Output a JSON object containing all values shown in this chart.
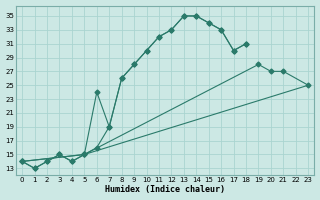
{
  "xlabel": "Humidex (Indice chaleur)",
  "bg_color": "#cce8e4",
  "grid_color": "#aad4d0",
  "line_color": "#2a7a6a",
  "xlim": [
    -0.5,
    23.5
  ],
  "ylim": [
    12,
    36.5
  ],
  "yticks": [
    13,
    15,
    17,
    19,
    21,
    23,
    25,
    27,
    29,
    31,
    33,
    35
  ],
  "xticks": [
    0,
    1,
    2,
    3,
    4,
    5,
    6,
    7,
    8,
    9,
    10,
    11,
    12,
    13,
    14,
    15,
    16,
    17,
    18,
    19,
    20,
    21,
    22,
    23
  ],
  "line1_x": [
    0,
    1,
    2,
    3,
    4,
    5,
    6,
    7,
    8,
    9,
    10,
    11,
    12,
    13,
    14,
    15,
    16,
    17,
    18
  ],
  "line1_y": [
    14,
    13,
    14,
    15,
    14,
    15,
    24,
    19,
    26,
    28,
    30,
    32,
    33,
    35,
    35,
    34,
    33,
    30,
    31
  ],
  "line2_x": [
    0,
    1,
    2,
    3,
    4,
    5,
    6,
    7,
    8,
    9,
    10,
    11,
    12,
    13,
    14,
    15,
    16,
    17,
    18
  ],
  "line2_y": [
    14,
    13,
    14,
    15,
    14,
    15,
    16,
    19,
    26,
    28,
    30,
    32,
    33,
    35,
    35,
    34,
    33,
    30,
    31
  ],
  "line3_x": [
    0,
    5,
    19,
    20,
    21,
    23
  ],
  "line3_y": [
    14,
    15,
    28,
    27,
    27,
    25
  ],
  "line4_x": [
    0,
    5,
    23
  ],
  "line4_y": [
    14,
    15,
    25
  ]
}
